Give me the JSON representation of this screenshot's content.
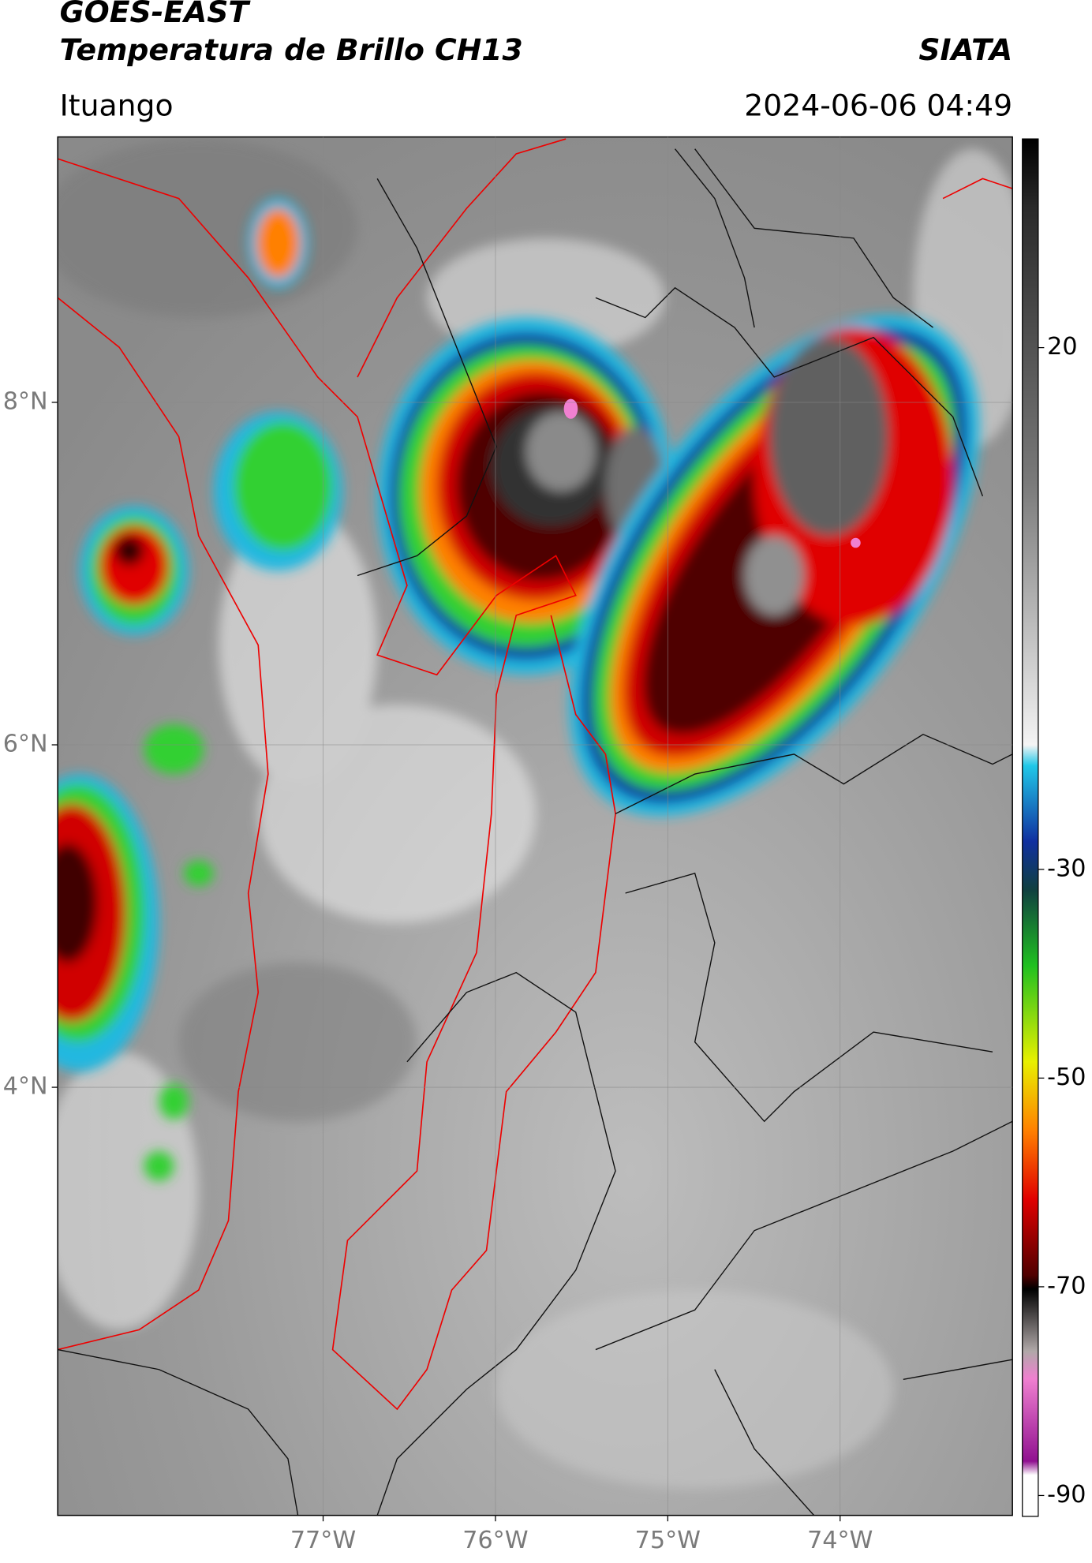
{
  "chart_data": {
    "type": "map",
    "title": "GOES-EAST",
    "subtitle": "Temperatura de Brillo CH13",
    "source": "SIATA",
    "location": "Ituango",
    "timestamp": "2024-06-06 04:49",
    "xlim": [
      -78.54,
      -73.0
    ],
    "ylim": [
      1.5,
      9.55
    ],
    "xticks": [
      {
        "value": -77,
        "label": "77°W"
      },
      {
        "value": -76,
        "label": "76°W"
      },
      {
        "value": -75,
        "label": "75°W"
      },
      {
        "value": -74,
        "label": "74°W"
      }
    ],
    "yticks": [
      {
        "value": 8,
        "label": "8°N"
      },
      {
        "value": 6,
        "label": "6°N"
      },
      {
        "value": 4,
        "label": "4°N"
      }
    ],
    "grid": true,
    "colorbar": {
      "clim": [
        -92,
        40
      ],
      "ticks": [
        20,
        -30,
        -50,
        -70,
        -90
      ]
    }
  }
}
